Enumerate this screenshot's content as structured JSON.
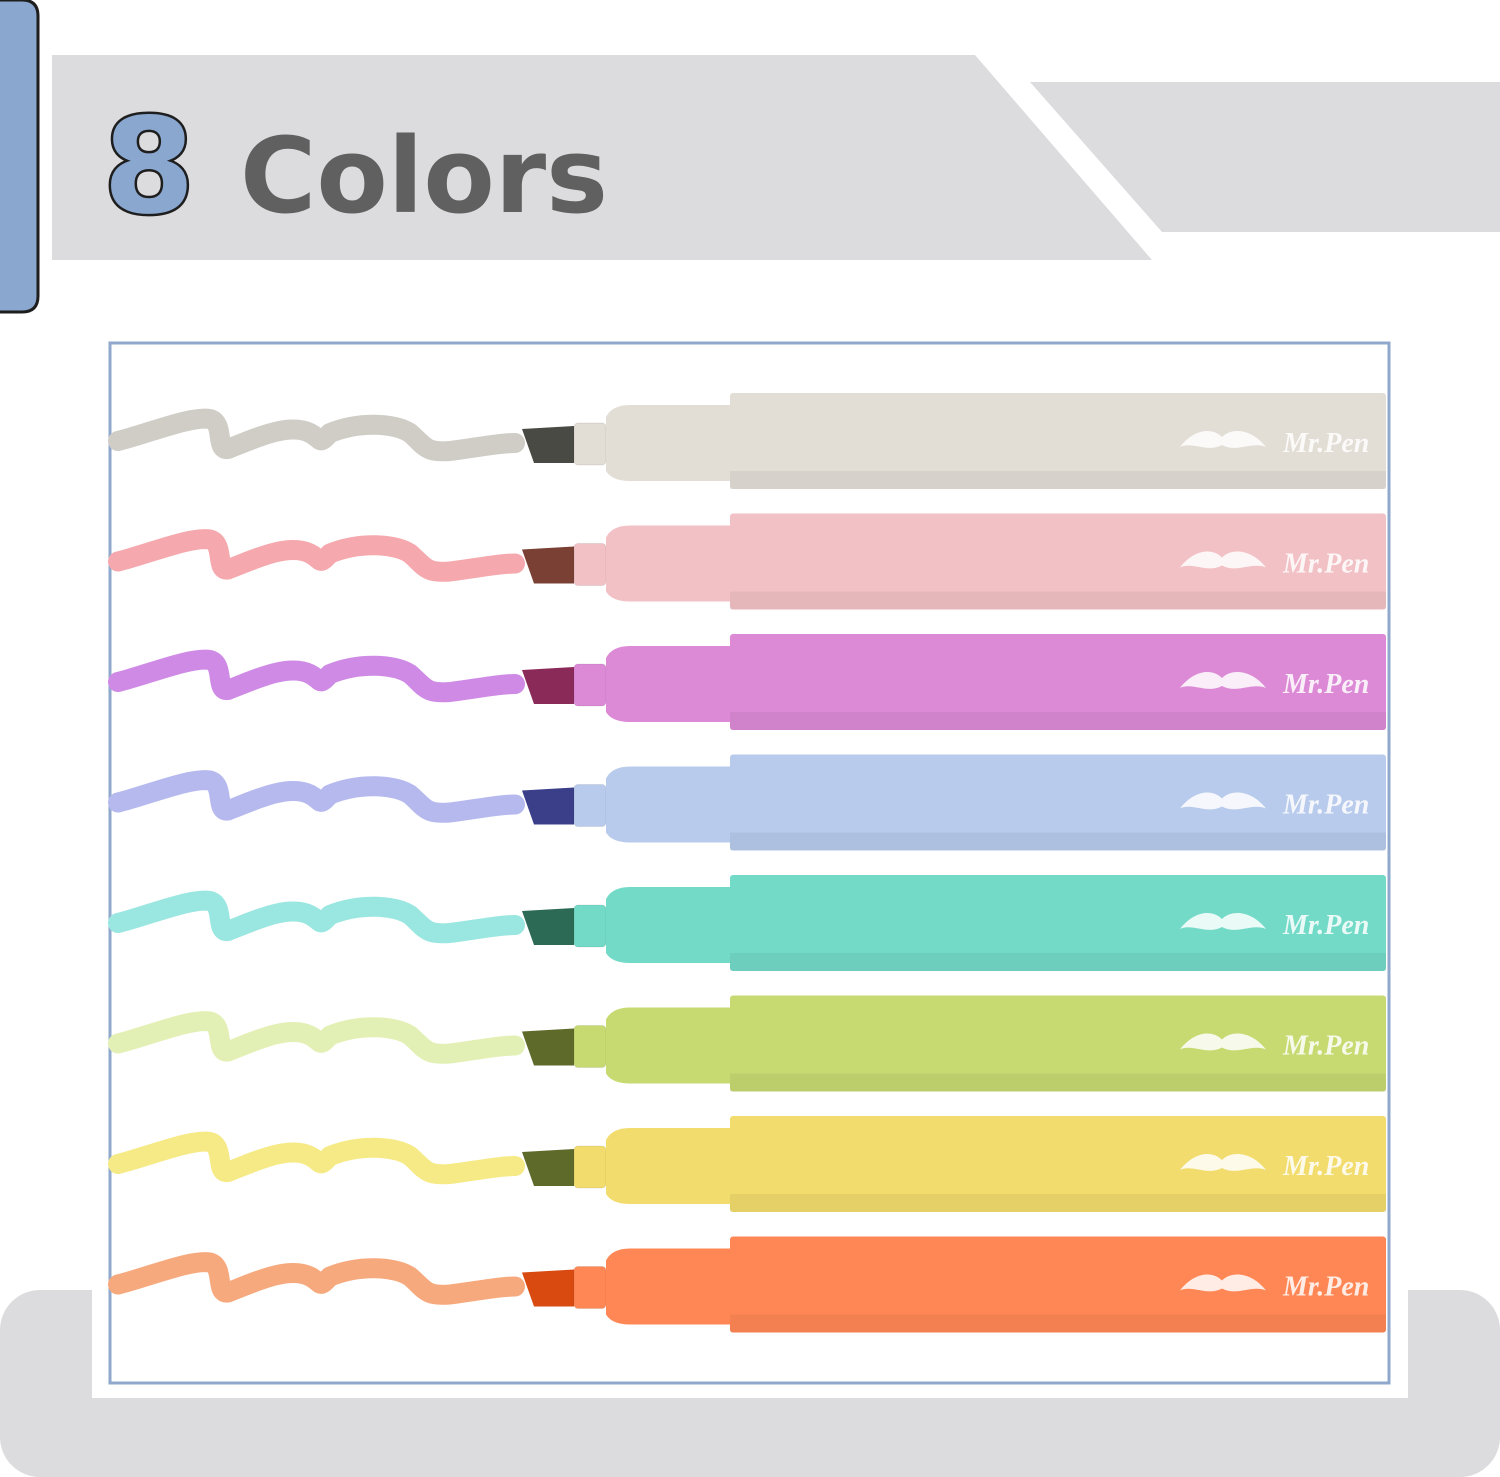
{
  "header": {
    "number": "8",
    "title": "Colors"
  },
  "pens": [
    {
      "brand": "Mr.Pen",
      "color": "#e2ded6",
      "ink": "#cfcdc6",
      "nib": "#4a4a44"
    },
    {
      "brand": "Mr.Pen",
      "color": "#f2c1c6",
      "ink": "#f5a8ad",
      "nib": "#7a4034"
    },
    {
      "brand": "Mr.Pen",
      "color": "#dc8ad6",
      "ink": "#cf8ae6",
      "nib": "#8a2a58"
    },
    {
      "brand": "Mr.Pen",
      "color": "#b8cbec",
      "ink": "#b5b9ee",
      "nib": "#3b3f8a"
    },
    {
      "brand": "Mr.Pen",
      "color": "#74dac8",
      "ink": "#9ae6e0",
      "nib": "#2d6a55"
    },
    {
      "brand": "Mr.Pen",
      "color": "#c7da72",
      "ink": "#e3f0b5",
      "nib": "#5e6a2a"
    },
    {
      "brand": "Mr.Pen",
      "color": "#f2dc6e",
      "ink": "#f6ea86",
      "nib": "#5e6a2a"
    },
    {
      "brand": "Mr.Pen",
      "color": "#ff8755",
      "ink": "#f7a97e",
      "nib": "#d84a10"
    }
  ]
}
